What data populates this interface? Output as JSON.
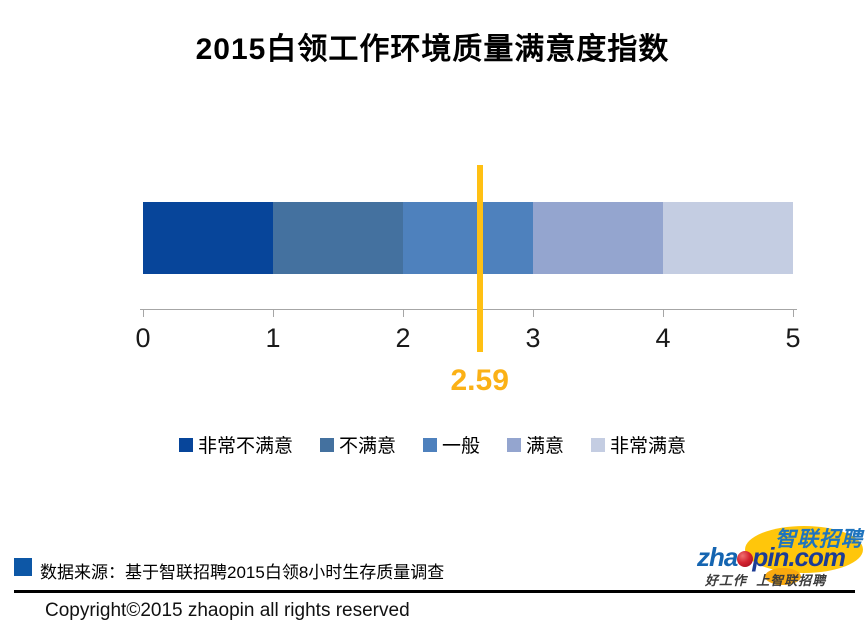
{
  "page": {
    "title": "2015白领工作环境质量满意度指数",
    "source_note": "数据来源：基于智联招聘2015白领8小时生存质量调查",
    "copyright": "Copyright©2015 zhaopin all rights reserved"
  },
  "chart_data": {
    "type": "bar",
    "orientation": "horizontal",
    "subtype": "banded-satisfaction-scale",
    "title": "2015白领工作环境质量满意度指数",
    "x_axis": {
      "min": 0,
      "max": 5,
      "tick_labels": [
        "0",
        "1",
        "2",
        "3",
        "4",
        "5"
      ],
      "grid": false
    },
    "bands": [
      {
        "label": "非常不满意",
        "range": [
          0,
          1
        ],
        "color": "#07459A"
      },
      {
        "label": "不满意",
        "range": [
          1,
          2
        ],
        "color": "#44719F"
      },
      {
        "label": "一般",
        "range": [
          2,
          3
        ],
        "color": "#4E81BD"
      },
      {
        "label": "满意",
        "range": [
          3,
          4
        ],
        "color": "#94A5CF"
      },
      {
        "label": "非常满意",
        "range": [
          4,
          5
        ],
        "color": "#C4CDE2"
      }
    ],
    "marker": {
      "value": 2.59,
      "label": "2.59",
      "line_color": "#FFC013",
      "label_color": "#FBB116"
    },
    "legend_position": "bottom-center"
  },
  "branding": {
    "brand_cn": "智联招聘",
    "brand_en_prefix": "zha",
    "brand_en_suffix": "pin.com",
    "tagline": "好工作  上智联招聘",
    "brand_blue": "#1565B1",
    "brand_dark_blue": "#1C3C95",
    "brand_yellow": "#FFC60B",
    "brand_red": "#C2121F",
    "footer_accent": "#0D57A6"
  }
}
